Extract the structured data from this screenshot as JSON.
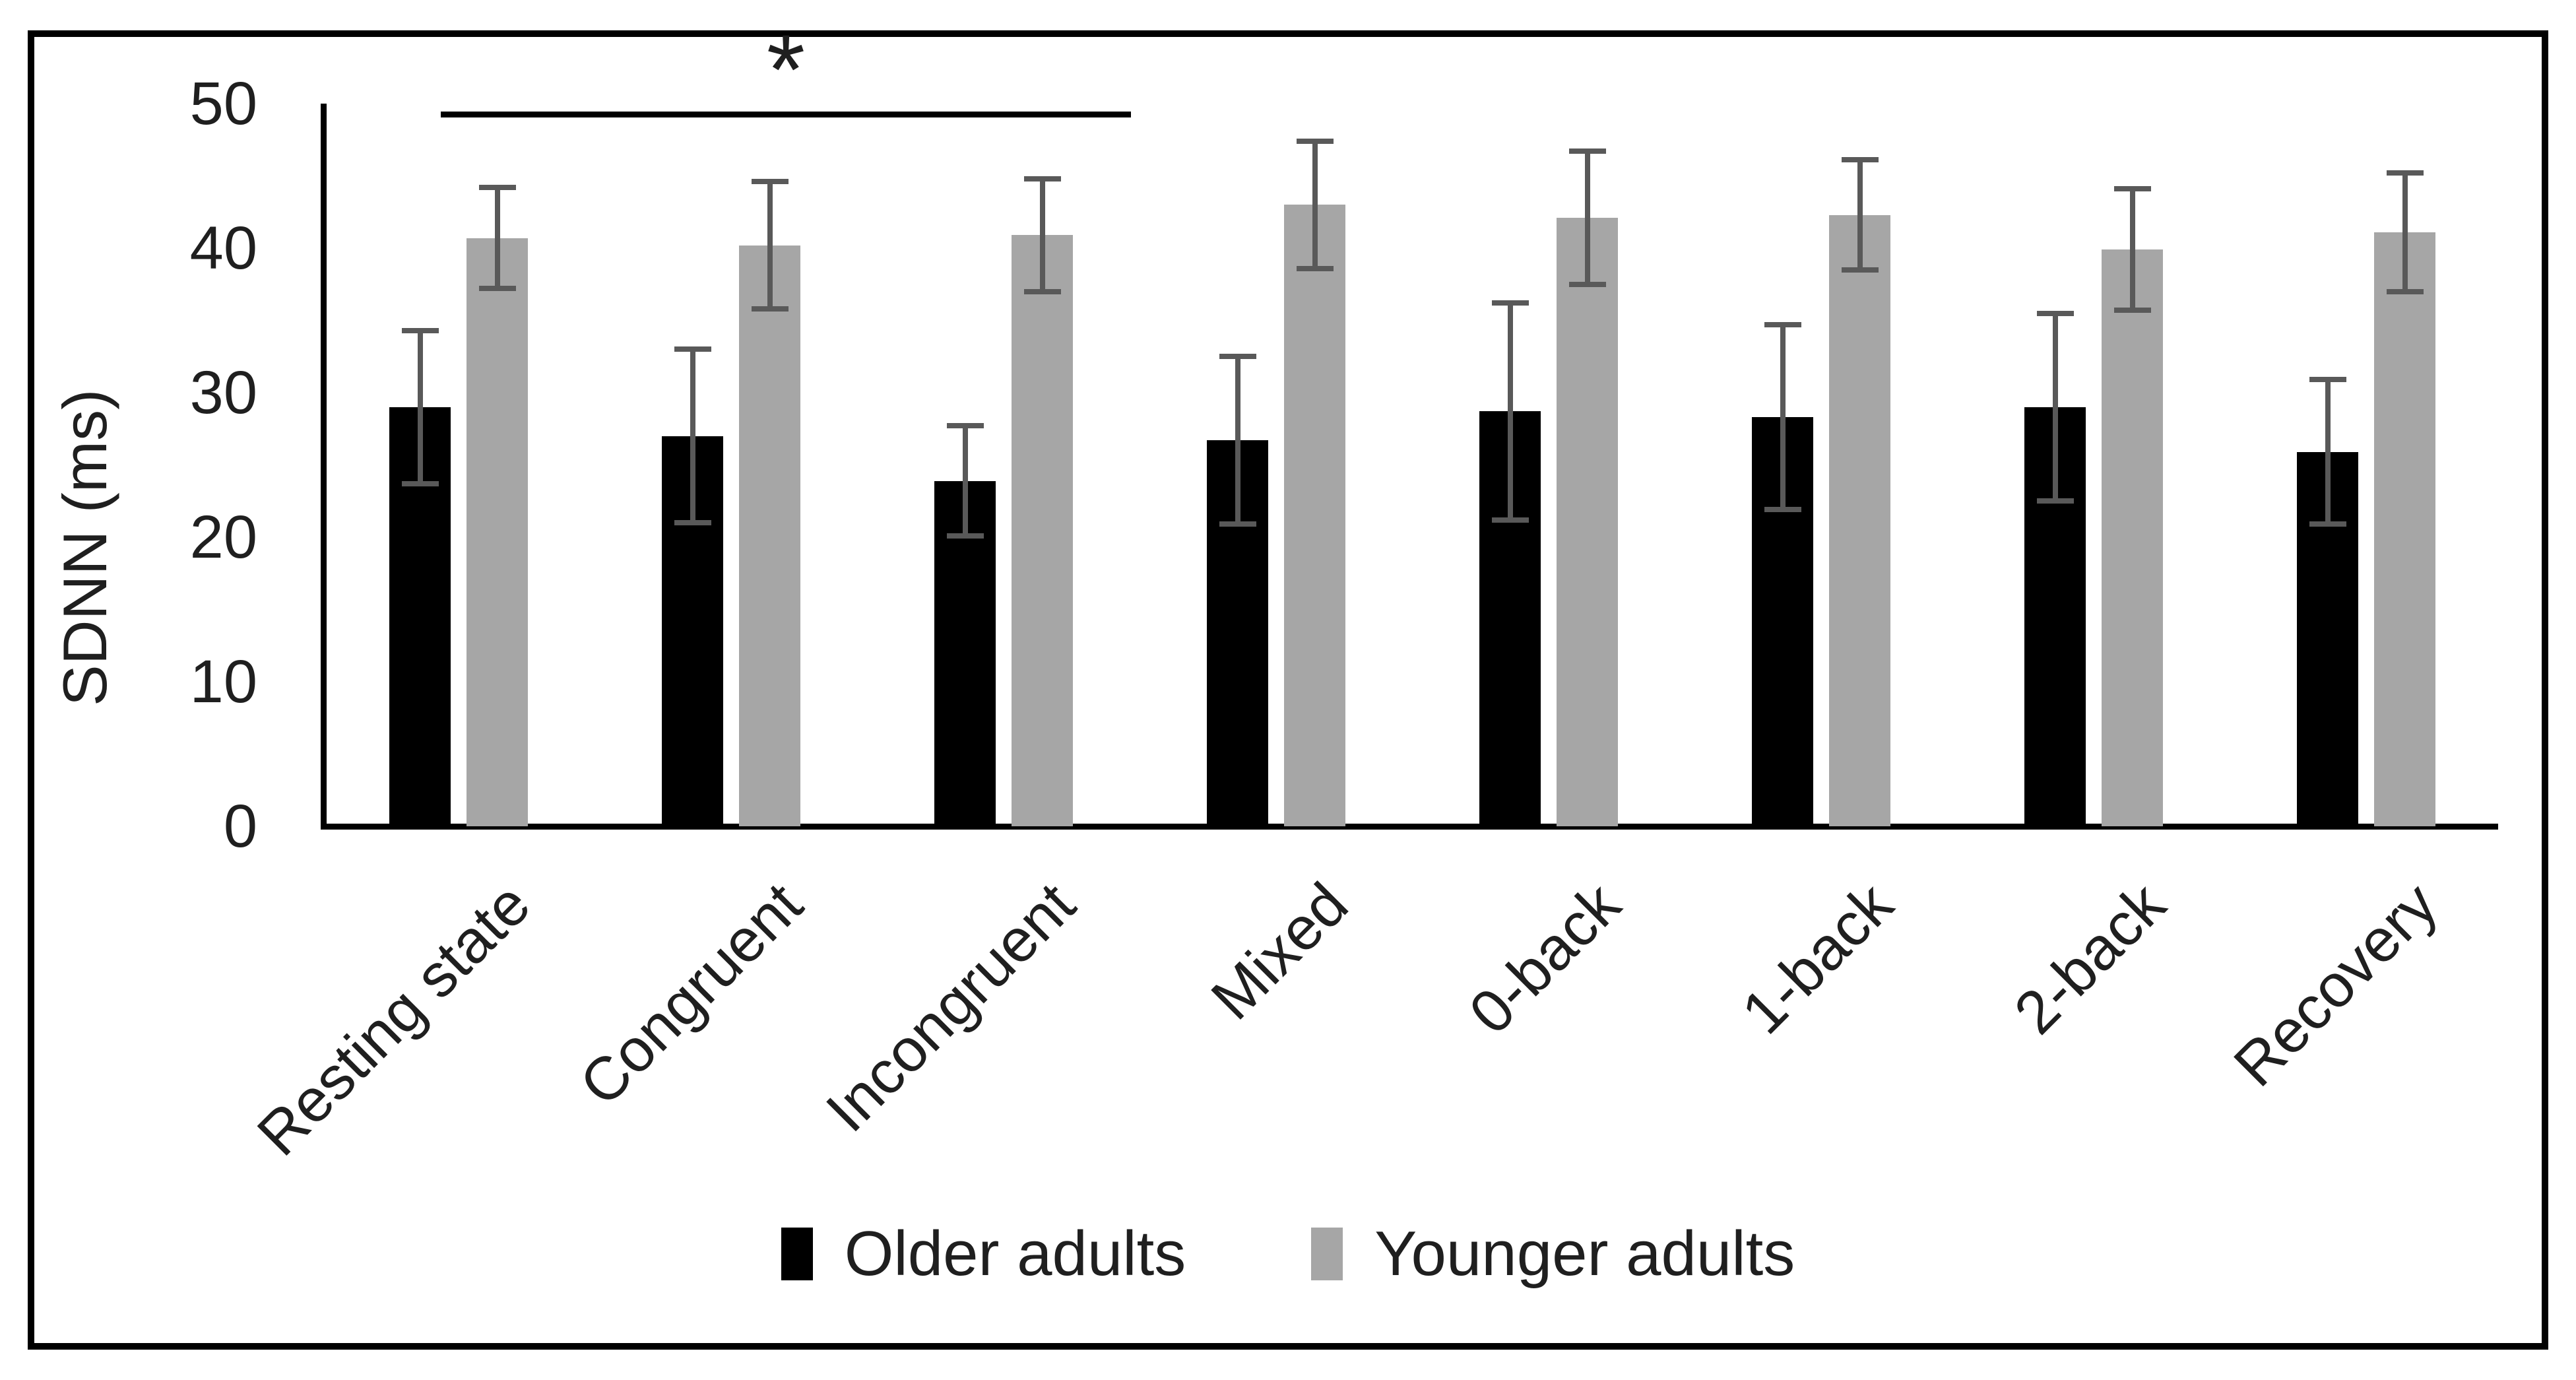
{
  "figure_type": "grouped bar chart with error bars",
  "colors": {
    "older_bar": "#000000",
    "younger_bar": "#a6a6a6",
    "error_bar": "#595959",
    "axis": "#000000",
    "text": "#1f1f1f",
    "frame_border": "#000000",
    "background": "#ffffff"
  },
  "y_axis": {
    "title": "SDNN (ms)",
    "tick_labels": [
      "50",
      "40",
      "30",
      "20",
      "10",
      "0"
    ],
    "min": 0,
    "max": 50
  },
  "legend": {
    "items": [
      {
        "label": "Older adults",
        "color": "#000000"
      },
      {
        "label": "Younger adults",
        "color": "#a6a6a6"
      }
    ]
  },
  "significance": {
    "label": "*",
    "from_category": "Resting state",
    "to_category": "Incongruent"
  },
  "chart_data": {
    "type": "bar",
    "title": "",
    "xlabel": "",
    "ylabel": "SDNN (ms)",
    "ylim": [
      0,
      50
    ],
    "yticks": [
      0,
      10,
      20,
      30,
      40,
      50
    ],
    "grid": false,
    "legend_position": "bottom-center",
    "categories": [
      "Resting state",
      "Congruent",
      "Incongruent",
      "Mixed",
      "0-back",
      "1-back",
      "2-back",
      "Recovery"
    ],
    "series": [
      {
        "name": "Older adults",
        "color": "#000000",
        "values": [
          29.0,
          27.0,
          23.9,
          26.7,
          28.7,
          28.3,
          29.0,
          25.9
        ],
        "errors": [
          5.3,
          6.0,
          3.8,
          5.8,
          7.5,
          6.4,
          6.5,
          5.0
        ]
      },
      {
        "name": "Younger adults",
        "color": "#a6a6a6",
        "values": [
          40.7,
          40.2,
          40.9,
          43.0,
          42.1,
          42.3,
          39.9,
          41.1
        ],
        "errors": [
          3.5,
          4.4,
          3.9,
          4.4,
          4.6,
          3.8,
          4.2,
          4.1
        ]
      }
    ],
    "annotations": [
      {
        "type": "significance-bracket",
        "label": "*",
        "from": "Resting state",
        "to": "Incongruent",
        "y_value": 49.3
      }
    ]
  }
}
